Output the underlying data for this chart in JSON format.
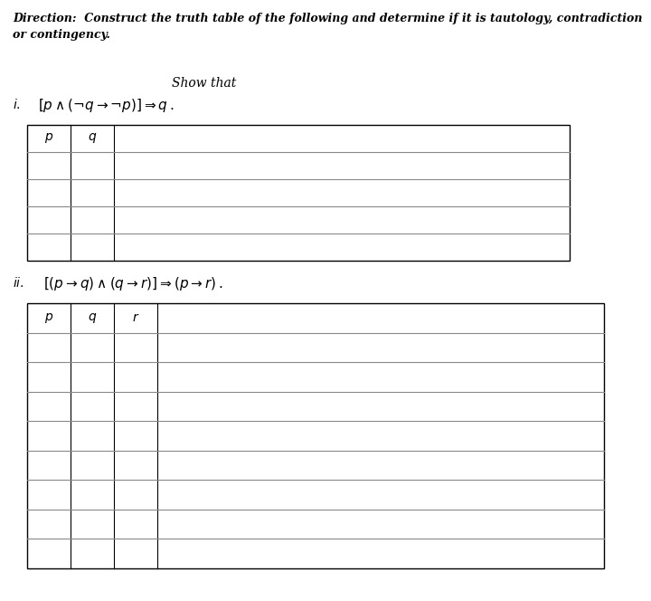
{
  "bg_color": "#ffffff",
  "direction_line1": "Direction:  Construct the truth table of the following and determine if it is tautology, contradiction",
  "direction_line2": "or contingency.",
  "show_that_text": "Show that",
  "table1_headers": [
    "p",
    "q"
  ],
  "table1_rows": 4,
  "table2_headers": [
    "p",
    "q",
    "r"
  ],
  "table2_rows": 8,
  "text_color": "#000000",
  "line_color": "#888888",
  "border_color": "#000000"
}
